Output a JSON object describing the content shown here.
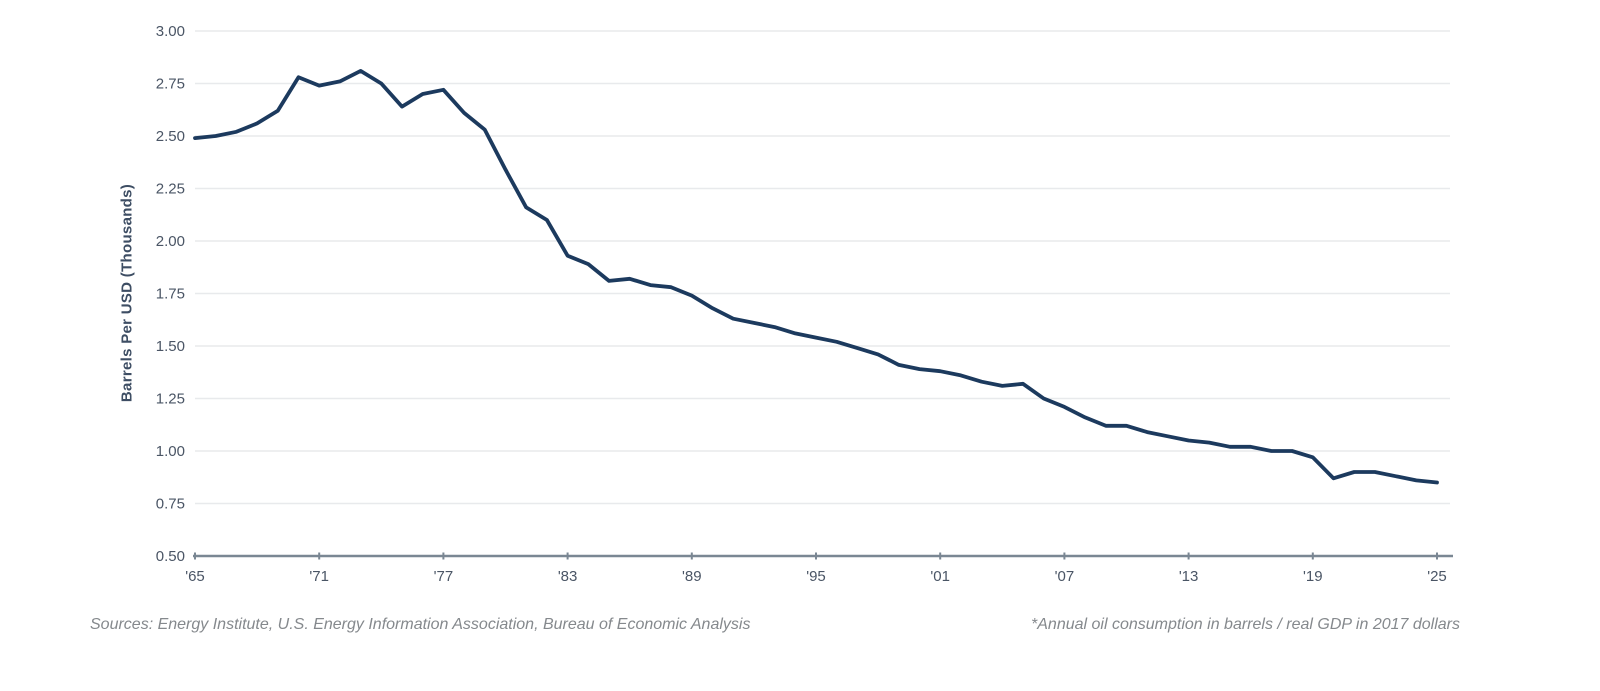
{
  "chart_data": {
    "type": "line",
    "title": "",
    "xlabel": "",
    "ylabel": "Barrels Per USD (Thousands)",
    "ylim": [
      0.5,
      3.0
    ],
    "ytick_step": 0.25,
    "ytick_labels": [
      "0.50",
      "0.75",
      "1.00",
      "1.25",
      "1.50",
      "1.75",
      "2.00",
      "2.25",
      "2.50",
      "2.75",
      "3.00"
    ],
    "xlim": [
      1965,
      2025
    ],
    "xticks": [
      1965,
      1971,
      1977,
      1983,
      1989,
      1995,
      2001,
      2007,
      2013,
      2019,
      2025
    ],
    "xtick_labels": [
      "'65",
      "'71",
      "'77",
      "'83",
      "'89",
      "'95",
      "'01",
      "'07",
      "'13",
      "'19",
      "'25"
    ],
    "grid": "horizontal",
    "legend": "none",
    "series": [
      {
        "name": "Annual oil consumption in barrels / real GDP in 2017 dollars",
        "x": [
          1965,
          1966,
          1967,
          1968,
          1969,
          1970,
          1971,
          1972,
          1973,
          1974,
          1975,
          1976,
          1977,
          1978,
          1979,
          1980,
          1981,
          1982,
          1983,
          1984,
          1985,
          1986,
          1987,
          1988,
          1989,
          1990,
          1991,
          1992,
          1993,
          1994,
          1995,
          1996,
          1997,
          1998,
          1999,
          2000,
          2001,
          2002,
          2003,
          2004,
          2005,
          2006,
          2007,
          2008,
          2009,
          2010,
          2011,
          2012,
          2013,
          2014,
          2015,
          2016,
          2017,
          2018,
          2019,
          2020,
          2021,
          2022,
          2023,
          2024,
          2025
        ],
        "values": [
          2.49,
          2.5,
          2.52,
          2.56,
          2.62,
          2.78,
          2.74,
          2.76,
          2.81,
          2.75,
          2.64,
          2.7,
          2.72,
          2.61,
          2.53,
          2.34,
          2.16,
          2.1,
          1.93,
          1.89,
          1.81,
          1.82,
          1.79,
          1.78,
          1.74,
          1.68,
          1.63,
          1.61,
          1.59,
          1.56,
          1.54,
          1.52,
          1.49,
          1.46,
          1.41,
          1.39,
          1.38,
          1.36,
          1.33,
          1.31,
          1.32,
          1.25,
          1.21,
          1.16,
          1.12,
          1.12,
          1.09,
          1.07,
          1.05,
          1.04,
          1.02,
          1.02,
          1.0,
          1.0,
          0.97,
          0.87,
          0.9,
          0.9,
          0.88,
          0.86,
          0.85
        ]
      }
    ],
    "colors": {
      "line": "#1c3a5e",
      "grid": "#e8eaec",
      "axis": "#7a8793",
      "tick_text": "#4a5565"
    }
  },
  "footer": {
    "sources": "Sources: Energy Institute, U.S. Energy Information Association, Bureau of Economic Analysis",
    "footnote": "*Annual oil consumption in barrels / real GDP in 2017 dollars"
  }
}
